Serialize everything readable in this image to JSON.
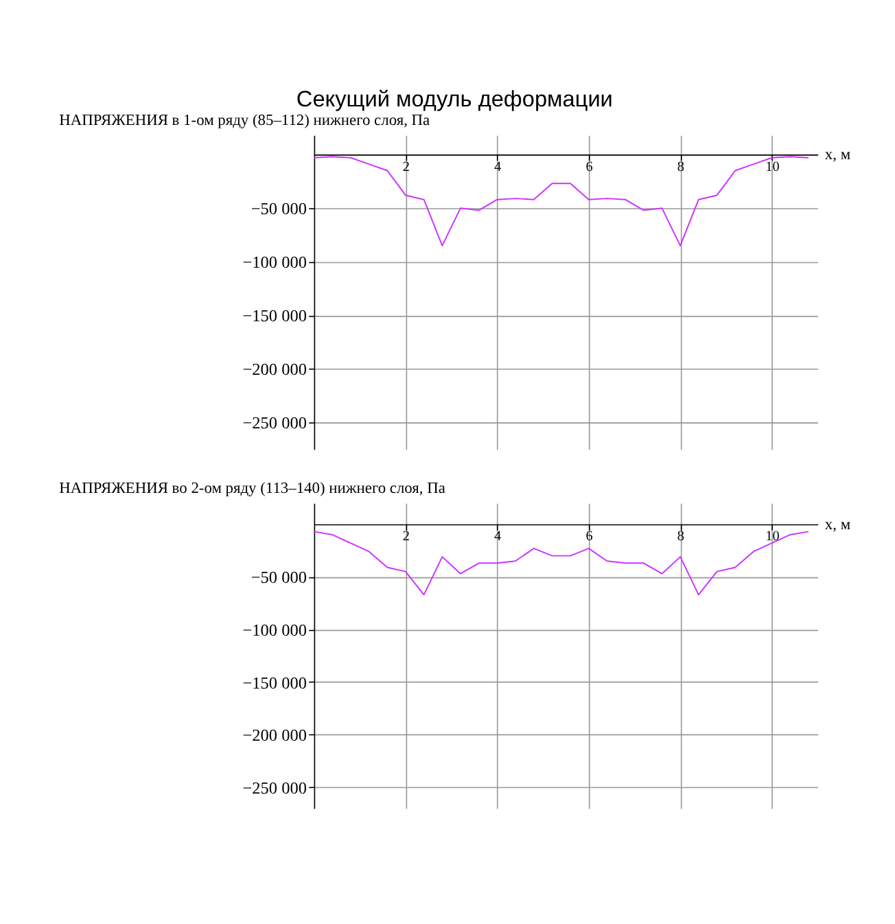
{
  "chart_data": [
    {
      "type": "line",
      "title": "Секущий модуль деформации",
      "ylabel": "НАПРЯЖЕНИЯ в 1-ом ряду (85–112) нижнего слоя, Па",
      "xlabel": "x, м",
      "x": [
        0,
        0.4,
        0.8,
        1.2,
        1.6,
        2.0,
        2.4,
        2.8,
        3.2,
        3.6,
        4.0,
        4.4,
        4.8,
        5.2,
        5.6,
        6.0,
        6.4,
        6.8,
        7.2,
        7.6,
        8.0,
        8.4,
        8.8,
        9.2,
        9.6,
        10.0,
        10.4,
        10.8
      ],
      "series": [
        {
          "color": "#cc33ff",
          "values": [
            -3000,
            -2000,
            -3000,
            -9000,
            -15000,
            -38000,
            -42000,
            -85000,
            -50000,
            -52000,
            -42000,
            -41000,
            -42000,
            -27000,
            -27000,
            -42000,
            -41000,
            -42000,
            -52000,
            -50000,
            -85000,
            -42000,
            -38000,
            -15000,
            -9000,
            -3000,
            -2000,
            -3000
          ]
        }
      ],
      "xlim": [
        0,
        11
      ],
      "ylim": [
        -275000,
        18000
      ],
      "xticks": [
        2,
        4,
        6,
        8,
        10
      ],
      "yticks": [
        {
          "value": -50000,
          "label": "−50 000"
        },
        {
          "value": -100000,
          "label": "−100 000"
        },
        {
          "value": -150000,
          "label": "−150 000"
        },
        {
          "value": -200000,
          "label": "−200 000"
        },
        {
          "value": -250000,
          "label": "−250 000"
        }
      ],
      "grid": true
    },
    {
      "type": "line",
      "ylabel": "НАПРЯЖЕНИЯ во 2-ом ряду (113–140) нижнего слоя, Па",
      "xlabel": "x, м",
      "x": [
        0,
        0.4,
        0.8,
        1.2,
        1.6,
        2.0,
        2.4,
        2.8,
        3.2,
        3.6,
        4.0,
        4.4,
        4.8,
        5.2,
        5.6,
        6.0,
        6.4,
        6.8,
        7.2,
        7.6,
        8.0,
        8.4,
        8.8,
        9.2,
        9.6,
        10.0,
        10.4,
        10.8
      ],
      "series": [
        {
          "color": "#cc33ff",
          "values": [
            -7000,
            -10000,
            -18000,
            -26000,
            -41000,
            -45000,
            -67000,
            -31000,
            -47000,
            -37000,
            -37000,
            -35000,
            -23000,
            -30000,
            -30000,
            -23000,
            -35000,
            -37000,
            -37000,
            -47000,
            -31000,
            -67000,
            -45000,
            -41000,
            -26000,
            -18000,
            -10000,
            -7000
          ]
        }
      ],
      "xlim": [
        0,
        11
      ],
      "ylim": [
        -270000,
        20000
      ],
      "xticks": [
        2,
        4,
        6,
        8,
        10
      ],
      "yticks": [
        {
          "value": -50000,
          "label": "−50 000"
        },
        {
          "value": -100000,
          "label": "−100 000"
        },
        {
          "value": -150000,
          "label": "−150 000"
        },
        {
          "value": -200000,
          "label": "−200 000"
        },
        {
          "value": -250000,
          "label": "−250 000"
        }
      ],
      "grid": true
    }
  ]
}
